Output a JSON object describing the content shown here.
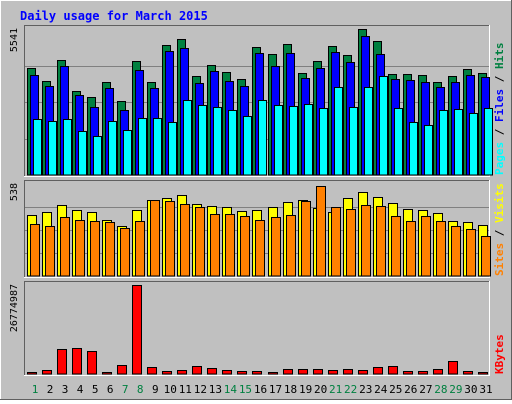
{
  "colors": {
    "background": "#c0c0c0",
    "panel": "#c0c0c0",
    "title": "#0000ff",
    "pages": "#00ffff",
    "files": "#0000ff",
    "hits": "#008040",
    "sites": "#ff8000",
    "visits": "#ffff00",
    "kbytes": "#ff0000",
    "weekend_day": "#008040",
    "weekday": "#000000",
    "grid": "#808080",
    "separator": "#000000"
  },
  "chart_data": {
    "type": "bar",
    "title": "Daily usage for March 2015",
    "categories": [
      "1",
      "2",
      "3",
      "4",
      "5",
      "6",
      "7",
      "8",
      "9",
      "10",
      "11",
      "12",
      "13",
      "14",
      "15",
      "16",
      "17",
      "18",
      "19",
      "20",
      "21",
      "22",
      "23",
      "24",
      "25",
      "26",
      "27",
      "28",
      "29",
      "30",
      "31"
    ],
    "weekend_days": [
      "1",
      "7",
      "8",
      "14",
      "15",
      "21",
      "22",
      "28",
      "29"
    ],
    "panels": [
      {
        "id": "hits_files_pages",
        "ymax_label": "5541",
        "ymax": 5541,
        "grid": true,
        "legend": {
          "parts": [
            {
              "text": "Pages",
              "color": "#00ffff"
            },
            {
              "text": " / ",
              "color": "#000000"
            },
            {
              "text": "Files",
              "color": "#0000ff"
            },
            {
              "text": " / ",
              "color": "#000000"
            },
            {
              "text": "Hits",
              "color": "#008040"
            }
          ]
        },
        "series": [
          {
            "name": "Hits",
            "color": "#008040",
            "values": [
              4050,
              3580,
              4380,
              3200,
              2950,
              3520,
              2800,
              4340,
              3530,
              4920,
              5180,
              3740,
              4190,
              3900,
              3650,
              4840,
              4610,
              4990,
              3870,
              4330,
              4880,
              4550,
              5540,
              5070,
              3840,
              3830,
              3810,
              3530,
              3760,
              4010,
              3860
            ]
          },
          {
            "name": "Files",
            "color": "#0000ff",
            "values": [
              3800,
              3380,
              4140,
              3030,
              2590,
              3320,
              2460,
              3980,
              3320,
              4700,
              4830,
              3510,
              3930,
              3570,
              3360,
              4630,
              4130,
              4620,
              3680,
              4060,
              4670,
              4280,
              5280,
              4610,
              3650,
              3600,
              3520,
              3330,
              3520,
              3790,
              3730
            ]
          },
          {
            "name": "Pages",
            "color": "#00ffff",
            "values": [
              2140,
              2040,
              2130,
              1670,
              1480,
              2040,
              1700,
              2160,
              2160,
              2030,
              2830,
              2660,
              2590,
              2480,
              2250,
              2860,
              2640,
              2600,
              2710,
              2540,
              3330,
              2580,
              3340,
              3740,
              2560,
              2010,
              1880,
              2450,
              2520,
              2370,
              2530
            ]
          }
        ]
      },
      {
        "id": "visits_sites",
        "ymax_label": "538",
        "ymax": 538,
        "grid": true,
        "legend": {
          "parts": [
            {
              "text": "Sites",
              "color": "#ff8000"
            },
            {
              "text": " / ",
              "color": "#000000"
            },
            {
              "text": "Visits",
              "color": "#ffff00"
            }
          ]
        },
        "series": [
          {
            "name": "Visits",
            "color": "#ffff00",
            "values": [
              356,
              375,
              416,
              388,
              376,
              327,
              291,
              387,
              447,
              456,
              475,
              423,
              411,
              402,
              381,
              385,
              401,
              432,
              447,
              400,
              377,
              457,
              494,
              463,
              424,
              390,
              384,
              367,
              320,
              315,
              296
            ]
          },
          {
            "name": "Sites",
            "color": "#ff8000",
            "values": [
              302,
              293,
              344,
              325,
              324,
              317,
              281,
              324,
              443,
              440,
              422,
              402,
              363,
              360,
              348,
              329,
              347,
              354,
              438,
              527,
              405,
              389,
              418,
              407,
              351,
              320,
              351,
              321,
              291,
              277,
              232
            ]
          }
        ]
      },
      {
        "id": "kbytes",
        "ymax_label": "26774987",
        "ymax": 26774987,
        "grid": false,
        "legend": {
          "parts": [
            {
              "text": "KBytes",
              "color": "#ff0000"
            }
          ]
        },
        "series": [
          {
            "name": "KBytes",
            "color": "#ff0000",
            "values": [
              660000,
              1100000,
              7600000,
              7700000,
              6900000,
              700000,
              2580000,
              26774987,
              2050000,
              1000000,
              1100000,
              2320000,
              1860000,
              1120000,
              1000000,
              1000000,
              700000,
              1500000,
              1500000,
              1500000,
              1300000,
              1400000,
              1100000,
              2100000,
              2400000,
              1000000,
              800000,
              1400000,
              3900000,
              800000,
              750000
            ]
          }
        ]
      }
    ]
  }
}
